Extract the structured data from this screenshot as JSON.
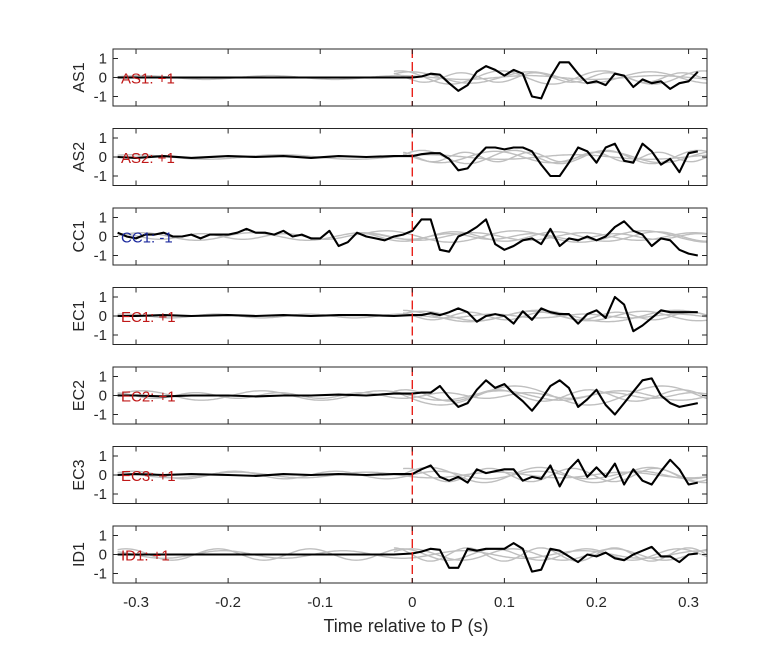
{
  "chart_data": {
    "type": "line",
    "title": "",
    "xlabel": "Time relative to P (s)",
    "xlim": [
      -0.325,
      0.32
    ],
    "ylim": [
      -1.5,
      1.5
    ],
    "xticks": [
      -0.3,
      -0.2,
      -0.1,
      0,
      0.1,
      0.2,
      0.3
    ],
    "xtick_labels": [
      "-0.3",
      "-0.2",
      "-0.1",
      "0",
      "0.1",
      "0.2",
      "0.3"
    ],
    "yticks": [
      -1,
      0,
      1
    ],
    "ytick_labels": [
      "-1",
      "0",
      "1"
    ],
    "marker_time": 0,
    "colors": {
      "main_trace": "#000000",
      "background_traces": "#bfbfbf",
      "marker": "#e8201a",
      "positive_polarity": "#c01818",
      "negative_polarity": "#1c2a9e",
      "axes": "#262626"
    },
    "panels": [
      {
        "station": "AS1",
        "annotation": "AS1: +1",
        "polarity": "positive",
        "trace_x": [
          -0.32,
          -0.25,
          -0.15,
          -0.05,
          0,
          0.01,
          0.02,
          0.03,
          0.04,
          0.05,
          0.06,
          0.07,
          0.08,
          0.09,
          0.1,
          0.11,
          0.12,
          0.13,
          0.14,
          0.15,
          0.16,
          0.17,
          0.18,
          0.19,
          0.2,
          0.21,
          0.22,
          0.23,
          0.24,
          0.25,
          0.26,
          0.27,
          0.28,
          0.29,
          0.3,
          0.31
        ],
        "trace_y": [
          0,
          0,
          0,
          0,
          0,
          0.05,
          0.2,
          0.15,
          -0.3,
          -0.7,
          -0.4,
          0.3,
          0.6,
          0.4,
          0.1,
          0.4,
          0.2,
          -1,
          -1.1,
          0,
          0.8,
          0.8,
          0.2,
          -0.3,
          -0.2,
          -0.4,
          0.2,
          0.1,
          -0.5,
          -0.1,
          -0.3,
          -0.2,
          -0.6,
          -0.3,
          -0.2,
          0.3
        ],
        "gray_traces": [
          {
            "amplitude": 0.1,
            "period": 0.14,
            "phase": 0.4,
            "onset": -0.32
          },
          {
            "amplitude": 0.35,
            "period": 0.11,
            "phase": 1.2,
            "onset": -0.02
          },
          {
            "amplitude": 0.25,
            "period": 0.08,
            "phase": 2.1,
            "onset": -0.02
          },
          {
            "amplitude": 0.3,
            "period": 0.13,
            "phase": 0.7,
            "onset": -0.02
          }
        ]
      },
      {
        "station": "AS2",
        "annotation": "AS2: +1",
        "polarity": "positive",
        "trace_x": [
          -0.32,
          -0.3,
          -0.27,
          -0.24,
          -0.2,
          -0.17,
          -0.14,
          -0.11,
          -0.08,
          -0.05,
          -0.02,
          0,
          0.01,
          0.02,
          0.03,
          0.04,
          0.05,
          0.06,
          0.07,
          0.08,
          0.09,
          0.1,
          0.11,
          0.12,
          0.13,
          0.14,
          0.15,
          0.16,
          0.17,
          0.18,
          0.19,
          0.2,
          0.21,
          0.22,
          0.23,
          0.24,
          0.25,
          0.26,
          0.27,
          0.28,
          0.29,
          0.3,
          0.31
        ],
        "trace_y": [
          0,
          -0.05,
          0.05,
          -0.05,
          0.05,
          0,
          0.05,
          -0.05,
          0.05,
          0,
          0.05,
          0.05,
          0.15,
          0.2,
          0.2,
          -0.1,
          -0.7,
          -0.6,
          0,
          0.5,
          0.5,
          0.4,
          0.5,
          0.5,
          0.3,
          -0.4,
          -1.0,
          -1.0,
          -0.3,
          0.5,
          0.3,
          -0.3,
          0.5,
          0.7,
          -0.2,
          -0.3,
          0.7,
          0.3,
          -0.4,
          -0.1,
          -0.8,
          0.2,
          0.3
        ],
        "gray_traces": [
          {
            "amplitude": 0.12,
            "period": 0.16,
            "phase": 0.9,
            "onset": -0.32
          },
          {
            "amplitude": 0.35,
            "period": 0.1,
            "phase": 0.3,
            "onset": -0.01
          },
          {
            "amplitude": 0.25,
            "period": 0.07,
            "phase": 1.8,
            "onset": -0.01
          },
          {
            "amplitude": 0.3,
            "period": 0.12,
            "phase": 2.6,
            "onset": -0.01
          }
        ]
      },
      {
        "station": "CC1",
        "annotation": "CC1: -1",
        "polarity": "negative",
        "trace_x": [
          -0.32,
          -0.31,
          -0.3,
          -0.29,
          -0.28,
          -0.27,
          -0.26,
          -0.25,
          -0.24,
          -0.23,
          -0.22,
          -0.21,
          -0.2,
          -0.19,
          -0.18,
          -0.17,
          -0.16,
          -0.15,
          -0.14,
          -0.13,
          -0.12,
          -0.11,
          -0.1,
          -0.09,
          -0.08,
          -0.07,
          -0.06,
          -0.05,
          -0.04,
          -0.03,
          -0.02,
          -0.01,
          0,
          0.01,
          0.02,
          0.03,
          0.04,
          0.05,
          0.06,
          0.07,
          0.08,
          0.09,
          0.1,
          0.11,
          0.12,
          0.13,
          0.14,
          0.15,
          0.16,
          0.17,
          0.18,
          0.19,
          0.2,
          0.21,
          0.22,
          0.23,
          0.24,
          0.25,
          0.26,
          0.27,
          0.28,
          0.29,
          0.3,
          0.31
        ],
        "trace_y": [
          0.2,
          0,
          -0.1,
          0.1,
          0.1,
          0.2,
          0,
          0,
          0.1,
          -0.1,
          0.1,
          0.1,
          0.1,
          0.2,
          0.4,
          0.2,
          0.2,
          0.1,
          0.3,
          0,
          0.1,
          -0.1,
          -0.1,
          0.3,
          -0.5,
          -0.3,
          0.2,
          0,
          -0.1,
          -0.2,
          0,
          0.1,
          0.3,
          0.9,
          0.9,
          -0.7,
          -0.8,
          0,
          0.2,
          0.5,
          0.9,
          -0.4,
          -0.7,
          -0.5,
          -0.2,
          -0.1,
          -0.4,
          0.4,
          -0.5,
          -0.1,
          -0.2,
          0,
          -0.2,
          0,
          0.5,
          0.8,
          0.3,
          0.1,
          -0.5,
          -0.1,
          -0.2,
          -0.7,
          -0.9,
          -1.0
        ],
        "gray_traces": [
          {
            "amplitude": 0.2,
            "period": 0.12,
            "phase": 0.2,
            "onset": -0.32
          },
          {
            "amplitude": 0.15,
            "period": 0.09,
            "phase": 1.5,
            "onset": -0.32
          },
          {
            "amplitude": 0.25,
            "period": 0.11,
            "phase": 2.4,
            "onset": -0.05
          },
          {
            "amplitude": 0.3,
            "period": 0.14,
            "phase": 0.6,
            "onset": -0.05
          }
        ]
      },
      {
        "station": "EC1",
        "annotation": "EC1: +1",
        "polarity": "positive",
        "trace_x": [
          -0.32,
          -0.3,
          -0.27,
          -0.24,
          -0.2,
          -0.17,
          -0.14,
          -0.11,
          -0.08,
          -0.05,
          -0.02,
          0,
          0.01,
          0.02,
          0.03,
          0.04,
          0.05,
          0.06,
          0.07,
          0.08,
          0.09,
          0.1,
          0.11,
          0.12,
          0.13,
          0.14,
          0.15,
          0.16,
          0.17,
          0.18,
          0.19,
          0.2,
          0.21,
          0.22,
          0.23,
          0.24,
          0.25,
          0.26,
          0.27,
          0.28,
          0.29,
          0.3,
          0.31
        ],
        "trace_y": [
          0,
          0,
          0.05,
          0,
          0.05,
          0,
          0.05,
          0,
          0.05,
          0.05,
          0,
          0.05,
          0.05,
          0.15,
          0.05,
          0.2,
          0.4,
          0.2,
          -0.3,
          0,
          0.1,
          0,
          -0.4,
          0.25,
          -0.2,
          0.4,
          0.2,
          0.1,
          0.1,
          -0.4,
          0.1,
          0.3,
          -0.1,
          1.0,
          0.6,
          -0.8,
          -0.5,
          -0.1,
          0.3,
          0.2,
          0.2,
          0.2,
          0.2
        ],
        "gray_traces": [
          {
            "amplitude": 0.1,
            "period": 0.1,
            "phase": 1.1,
            "onset": -0.32
          },
          {
            "amplitude": 0.25,
            "period": 0.12,
            "phase": 0.5,
            "onset": -0.01
          },
          {
            "amplitude": 0.2,
            "period": 0.08,
            "phase": 2.2,
            "onset": -0.01
          },
          {
            "amplitude": 0.3,
            "period": 0.15,
            "phase": 1.7,
            "onset": -0.01
          }
        ]
      },
      {
        "station": "EC2",
        "annotation": "EC2: +1",
        "polarity": "positive",
        "trace_x": [
          -0.32,
          -0.3,
          -0.27,
          -0.24,
          -0.2,
          -0.17,
          -0.14,
          -0.11,
          -0.08,
          -0.05,
          -0.02,
          0,
          0.01,
          0.02,
          0.03,
          0.04,
          0.05,
          0.06,
          0.07,
          0.08,
          0.09,
          0.1,
          0.11,
          0.12,
          0.13,
          0.14,
          0.15,
          0.16,
          0.17,
          0.18,
          0.19,
          0.2,
          0.21,
          0.22,
          0.23,
          0.24,
          0.25,
          0.26,
          0.27,
          0.28,
          0.29,
          0.3,
          0.31
        ],
        "trace_y": [
          0,
          0,
          -0.05,
          0,
          0,
          -0.05,
          0,
          0,
          0.05,
          0,
          0.1,
          0.1,
          0.15,
          0.15,
          0.5,
          -0.1,
          -0.6,
          -0.4,
          0.3,
          0.8,
          0.4,
          0.6,
          0.1,
          -0.3,
          -0.8,
          -0.2,
          0.5,
          0.8,
          0.4,
          -0.6,
          -0.2,
          0.3,
          -0.5,
          -1.0,
          -0.4,
          0.2,
          0.8,
          0.9,
          0,
          -0.4,
          -0.6,
          -0.5,
          -0.4
        ],
        "gray_traces": [
          {
            "amplitude": 0.25,
            "period": 0.13,
            "phase": 0.3,
            "onset": -0.32
          },
          {
            "amplitude": 0.15,
            "period": 0.09,
            "phase": 1.9,
            "onset": -0.32
          },
          {
            "amplitude": 0.5,
            "period": 0.16,
            "phase": 2.7,
            "onset": -0.02
          },
          {
            "amplitude": 0.3,
            "period": 0.1,
            "phase": 0.8,
            "onset": -0.02
          }
        ]
      },
      {
        "station": "EC3",
        "annotation": "EC3: +1",
        "polarity": "positive",
        "trace_x": [
          -0.32,
          -0.3,
          -0.27,
          -0.24,
          -0.2,
          -0.17,
          -0.14,
          -0.11,
          -0.08,
          -0.05,
          -0.02,
          0,
          0.01,
          0.02,
          0.03,
          0.04,
          0.05,
          0.06,
          0.07,
          0.08,
          0.09,
          0.1,
          0.11,
          0.12,
          0.13,
          0.14,
          0.15,
          0.16,
          0.17,
          0.18,
          0.19,
          0.2,
          0.21,
          0.22,
          0.23,
          0.24,
          0.25,
          0.26,
          0.27,
          0.28,
          0.29,
          0.3,
          0.31
        ],
        "trace_y": [
          0,
          0.05,
          0,
          0.05,
          0,
          -0.05,
          0.05,
          0,
          0.05,
          0,
          0.05,
          0.05,
          0.3,
          0.5,
          -0.1,
          -0.3,
          -0.1,
          -0.4,
          0.3,
          0.1,
          0.2,
          0.3,
          0.3,
          -0.3,
          -0.1,
          -0.2,
          0.5,
          -0.6,
          0.3,
          0.8,
          -0.1,
          0.4,
          -0.1,
          0.6,
          -0.5,
          0.3,
          -0.3,
          -0.5,
          0.2,
          0.8,
          0.3,
          -0.5,
          -0.4
        ],
        "gray_traces": [
          {
            "amplitude": 0.2,
            "period": 0.11,
            "phase": 0.6,
            "onset": -0.32
          },
          {
            "amplitude": 0.15,
            "period": 0.14,
            "phase": 2.0,
            "onset": -0.32
          },
          {
            "amplitude": 0.35,
            "period": 0.09,
            "phase": 1.3,
            "onset": -0.01
          },
          {
            "amplitude": 0.4,
            "period": 0.12,
            "phase": 0.1,
            "onset": -0.01
          }
        ]
      },
      {
        "station": "ID1",
        "annotation": "ID1: +1",
        "polarity": "positive",
        "trace_x": [
          -0.32,
          -0.3,
          -0.27,
          -0.24,
          -0.2,
          -0.17,
          -0.14,
          -0.11,
          -0.08,
          -0.05,
          -0.02,
          0,
          0.01,
          0.02,
          0.03,
          0.04,
          0.05,
          0.06,
          0.07,
          0.08,
          0.09,
          0.1,
          0.11,
          0.12,
          0.13,
          0.14,
          0.15,
          0.16,
          0.17,
          0.18,
          0.19,
          0.2,
          0.21,
          0.22,
          0.23,
          0.24,
          0.25,
          0.26,
          0.27,
          0.28,
          0.29,
          0.3,
          0.31
        ],
        "trace_y": [
          0,
          0,
          0,
          0,
          0,
          0,
          0,
          0,
          0,
          0,
          0,
          0.05,
          0.15,
          0.3,
          0.25,
          -0.7,
          -0.7,
          0.3,
          0.2,
          0.3,
          0.3,
          0.3,
          0.6,
          0.3,
          -0.9,
          -0.8,
          0.3,
          0.2,
          -0.1,
          -0.4,
          0,
          -0.1,
          0.1,
          -0.2,
          -0.3,
          0,
          0.2,
          0.4,
          -0.1,
          -0.1,
          -0.4,
          0,
          0.05
        ],
        "gray_traces": [
          {
            "amplitude": 0.3,
            "period": 0.1,
            "phase": 1.0,
            "onset": -0.32
          },
          {
            "amplitude": 0.2,
            "period": 0.13,
            "phase": 2.3,
            "onset": -0.32
          },
          {
            "amplitude": 0.3,
            "period": 0.11,
            "phase": 0.5,
            "onset": -0.02
          },
          {
            "amplitude": 0.35,
            "period": 0.08,
            "phase": 1.6,
            "onset": -0.02
          }
        ]
      }
    ]
  }
}
